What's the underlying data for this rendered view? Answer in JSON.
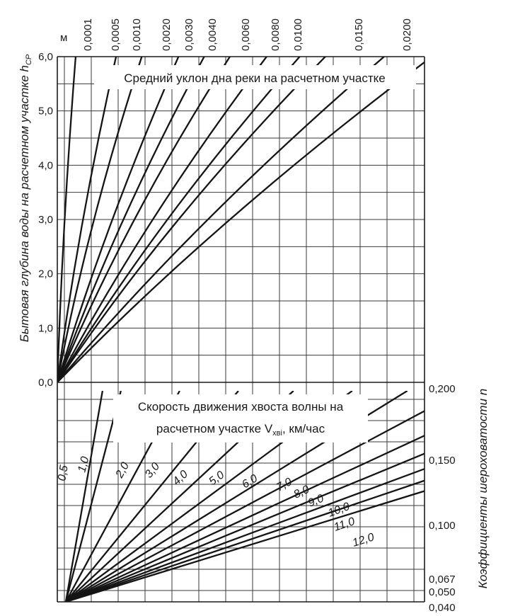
{
  "chart_data": [
    {
      "type": "line",
      "title": "Средний уклон дна реки на расчетном участке",
      "ylabel_main": "Бытовая глубина воды на расчетном участке h",
      "ylabel_sub": "СР",
      "unit_label": "м",
      "y_ticks": [
        "6,0",
        "5,0",
        "4,0",
        "3,0",
        "2,0",
        "1,0",
        "0,0"
      ],
      "ylim": [
        0,
        6
      ],
      "grid": true,
      "series": [
        {
          "name": "0,0001",
          "x": [
            0.0,
            0.02,
            0.05
          ],
          "y": [
            0,
            3,
            6
          ]
        },
        {
          "name": "0,0005",
          "x": [
            0.0,
            0.07,
            0.16
          ],
          "y": [
            0,
            3,
            6
          ]
        },
        {
          "name": "0,0010",
          "x": [
            0.0,
            0.1,
            0.23
          ],
          "y": [
            0,
            3,
            6
          ]
        },
        {
          "name": "0,0020",
          "x": [
            0.0,
            0.15,
            0.33
          ],
          "y": [
            0,
            3,
            6
          ]
        },
        {
          "name": "0,0030",
          "x": [
            0.0,
            0.18,
            0.4
          ],
          "y": [
            0,
            3,
            6
          ]
        },
        {
          "name": "0,0040",
          "x": [
            0.0,
            0.21,
            0.47
          ],
          "y": [
            0,
            3,
            6
          ]
        },
        {
          "name": "0,0060",
          "x": [
            0.0,
            0.26,
            0.57
          ],
          "y": [
            0,
            3,
            6
          ]
        },
        {
          "name": "0,0080",
          "x": [
            0.0,
            0.3,
            0.66
          ],
          "y": [
            0,
            3,
            6
          ]
        },
        {
          "name": "0,0100",
          "x": [
            0.0,
            0.33,
            0.73
          ],
          "y": [
            0,
            3,
            6
          ]
        },
        {
          "name": "0,0150",
          "x": [
            0.0,
            0.41,
            0.89
          ],
          "y": [
            0,
            3,
            6
          ]
        },
        {
          "name": "0,0200",
          "x": [
            0.0,
            0.47,
            1.02
          ],
          "y": [
            0,
            3,
            6
          ]
        }
      ]
    },
    {
      "type": "line",
      "title_line1": "Скорость движения хвоста волны на",
      "title_line2": "расчетном участке V",
      "title_sub": "хвi",
      "title_tail": ", км/час",
      "ylabel": "Коэффициенты шероховатости n",
      "y_ticks": [
        "0,200",
        "0,150",
        "0,100",
        "0,067",
        "0,050",
        "0,040"
      ],
      "ylim": [
        0.04,
        0.2
      ],
      "grid": true,
      "series": [
        {
          "name": "0,5",
          "x": [
            0.0,
            0.1
          ],
          "y": [
            0.04,
            0.2
          ]
        },
        {
          "name": "1,0",
          "x": [
            0.0,
            0.15
          ],
          "y": [
            0.04,
            0.2
          ]
        },
        {
          "name": "2,0",
          "x": [
            0.0,
            0.31
          ],
          "y": [
            0.04,
            0.2
          ]
        },
        {
          "name": "3,0",
          "x": [
            0.0,
            0.47
          ],
          "y": [
            0.04,
            0.2
          ]
        },
        {
          "name": "4,0",
          "x": [
            0.0,
            0.62
          ],
          "y": [
            0.04,
            0.2
          ]
        },
        {
          "name": "5,0",
          "x": [
            0.0,
            0.78
          ],
          "y": [
            0.04,
            0.2
          ]
        },
        {
          "name": "6,0",
          "x": [
            0.0,
            0.93
          ],
          "y": [
            0.04,
            0.2
          ]
        },
        {
          "name": "7,0",
          "x": [
            0.0,
            1.08
          ],
          "y": [
            0.04,
            0.2
          ]
        },
        {
          "name": "8,0",
          "x": [
            0.0,
            1.24
          ],
          "y": [
            0.04,
            0.2
          ]
        },
        {
          "name": "9,0",
          "x": [
            0.0,
            1.39
          ],
          "y": [
            0.04,
            0.2
          ]
        },
        {
          "name": "10,0",
          "x": [
            0.0,
            1.55
          ],
          "y": [
            0.04,
            0.2
          ]
        },
        {
          "name": "11,0",
          "x": [
            0.0,
            1.7
          ],
          "y": [
            0.04,
            0.2
          ]
        },
        {
          "name": "12,0",
          "x": [
            0.0,
            1.86
          ],
          "y": [
            0.04,
            0.2
          ]
        }
      ]
    }
  ]
}
